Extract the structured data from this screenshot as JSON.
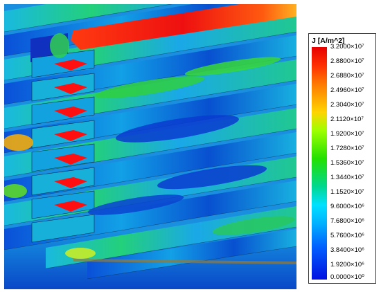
{
  "legend": {
    "title": "J [A/m^2]",
    "colors": [
      "#e60000",
      "#ff7a00",
      "#ffd400",
      "#22e000",
      "#00d890",
      "#00e0ff",
      "#0060ff",
      "#0010e0"
    ],
    "ticks": [
      "3.2000×10⁷",
      "2.8800×10⁷",
      "2.6880×10⁷",
      "2.4960×10⁷",
      "2.3040×10⁷",
      "2.1120×10⁷",
      "1.9200×10⁷",
      "1.7280×10⁷",
      "1.5360×10⁷",
      "1.3440×10⁷",
      "1.1520×10⁷",
      "9.6000×10⁶",
      "7.6800×10⁶",
      "5.7600×10⁶",
      "3.8400×10⁶",
      "1.9200×10⁶",
      "0.0000×10⁰"
    ]
  }
}
